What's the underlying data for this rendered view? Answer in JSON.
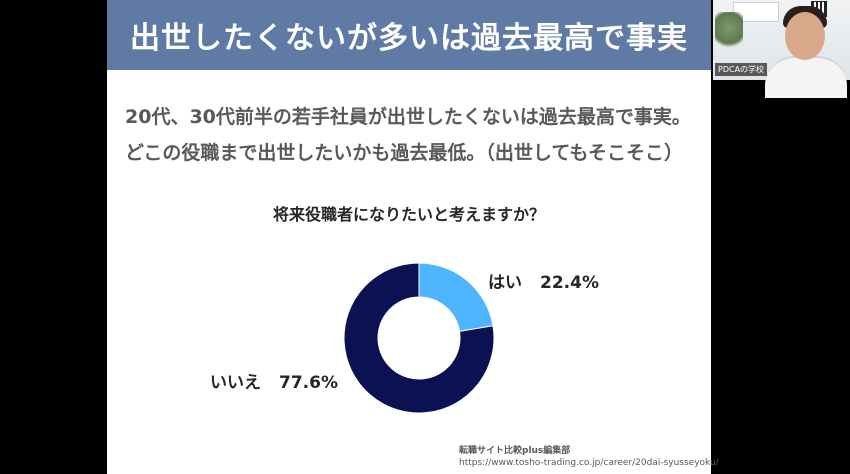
{
  "slide": {
    "title": "出世したくないが多いは過去最高で事実",
    "lead_line1": "20代、30代前半の若手社員が出世したくないは過去最高で事実。",
    "lead_line2": "どこの役職まで出世したいかも過去最低。（出世してもそこそこ）",
    "source_line1": "転職サイト比較plus編集部",
    "source_line2": "https://www.tosho-trading.co.jp/career/20dai-syusseyoku/",
    "title_bar_color": "#5e7aa5"
  },
  "chart_data": {
    "type": "pie",
    "donut": true,
    "title": "将来役職者になりたいと考えますか？",
    "slices": [
      {
        "label": "はい",
        "value": 22.4,
        "value_text": "22.4%",
        "color": "#4db5ff"
      },
      {
        "label": "いいえ",
        "value": 77.6,
        "value_text": "77.6%",
        "color": "#0b1254"
      }
    ],
    "start_angle_deg": 0,
    "direction": "clockwise",
    "legend": "none"
  },
  "webcam": {
    "overlay_label": "PDCAの学校"
  }
}
